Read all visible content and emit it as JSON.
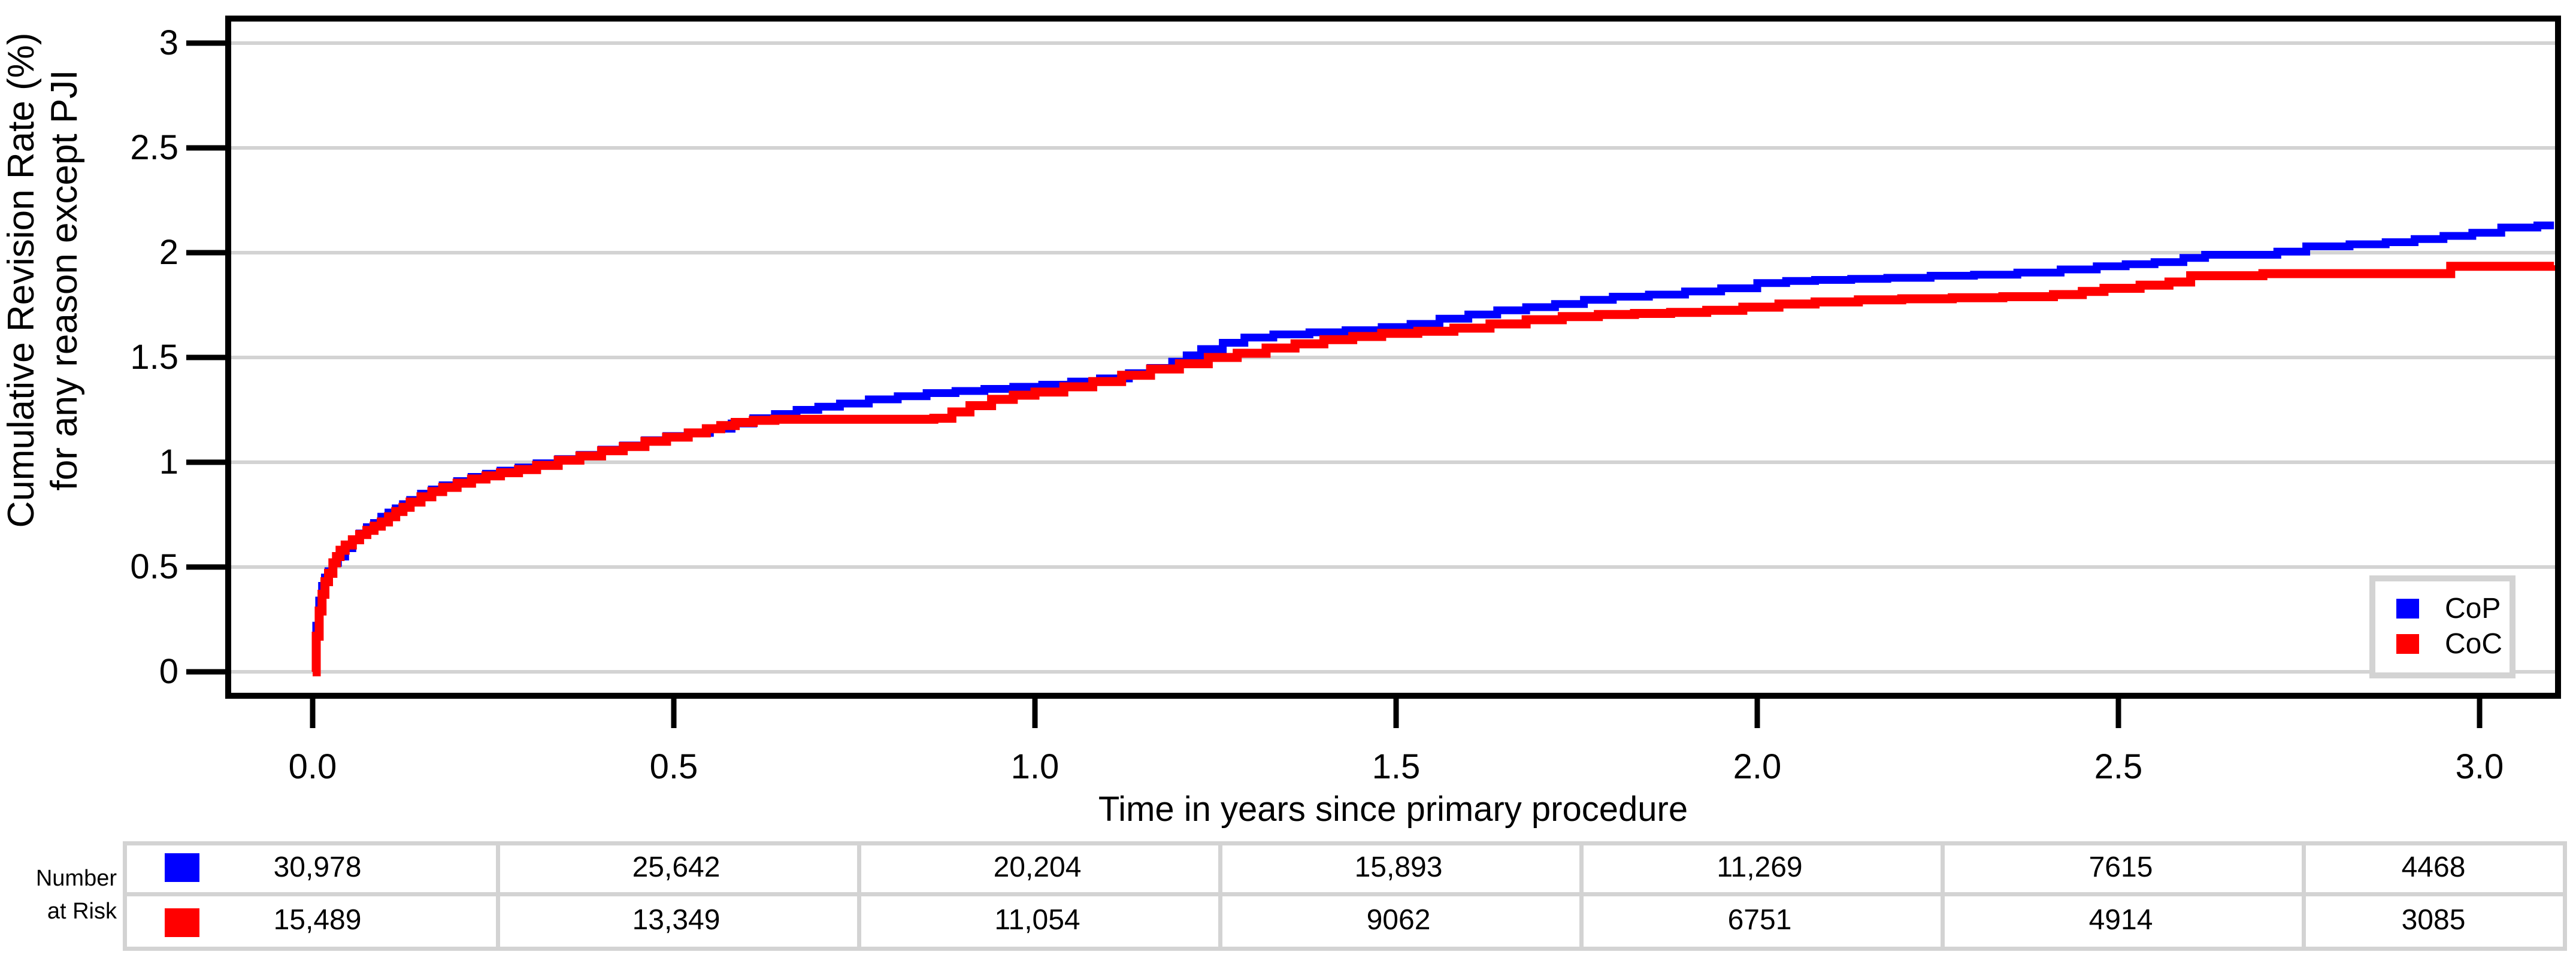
{
  "chart_data": {
    "type": "line",
    "subtype": "step-cumulative-incidence",
    "title": "",
    "xlabel": "Time in years since primary procedure",
    "ylabel_line1": "Cumulative Revision Rate (%)",
    "ylabel_line2": "for any reason except PJI",
    "xlim": [
      -0.16,
      3.1
    ],
    "ylim": [
      0,
      3.1
    ],
    "x_ticks": [
      "0.0",
      "0.5",
      "1.0",
      "1.5",
      "2.0",
      "2.5",
      "3.0"
    ],
    "y_ticks": [
      "3",
      "2.5",
      "2",
      "1.5",
      "1",
      "0.5",
      "0"
    ],
    "grid": true,
    "gridline_color": "#d3d3d3",
    "legend_position": "lower right",
    "series": [
      {
        "name": "CoP",
        "color": "#0000ff",
        "points": [
          [
            0,
            0
          ],
          [
            0.005,
            0.22
          ],
          [
            0.009,
            0.34
          ],
          [
            0.013,
            0.41
          ],
          [
            0.017,
            0.45
          ],
          [
            0.022,
            0.48
          ],
          [
            0.028,
            0.52
          ],
          [
            0.035,
            0.55
          ],
          [
            0.045,
            0.59
          ],
          [
            0.055,
            0.63
          ],
          [
            0.065,
            0.66
          ],
          [
            0.075,
            0.69
          ],
          [
            0.085,
            0.71
          ],
          [
            0.095,
            0.74
          ],
          [
            0.105,
            0.76
          ],
          [
            0.115,
            0.78
          ],
          [
            0.125,
            0.8
          ],
          [
            0.135,
            0.82
          ],
          [
            0.15,
            0.85
          ],
          [
            0.165,
            0.87
          ],
          [
            0.18,
            0.89
          ],
          [
            0.2,
            0.91
          ],
          [
            0.22,
            0.93
          ],
          [
            0.24,
            0.945
          ],
          [
            0.26,
            0.96
          ],
          [
            0.285,
            0.975
          ],
          [
            0.31,
            0.995
          ],
          [
            0.34,
            1.015
          ],
          [
            0.37,
            1.035
          ],
          [
            0.4,
            1.06
          ],
          [
            0.43,
            1.08
          ],
          [
            0.46,
            1.105
          ],
          [
            0.49,
            1.125
          ],
          [
            0.52,
            1.14
          ],
          [
            0.55,
            1.16
          ],
          [
            0.58,
            1.185
          ],
          [
            0.61,
            1.21
          ],
          [
            0.64,
            1.23
          ],
          [
            0.67,
            1.25
          ],
          [
            0.7,
            1.265
          ],
          [
            0.73,
            1.28
          ],
          [
            0.77,
            1.3
          ],
          [
            0.81,
            1.315
          ],
          [
            0.85,
            1.33
          ],
          [
            0.89,
            1.34
          ],
          [
            0.93,
            1.35
          ],
          [
            0.97,
            1.36
          ],
          [
            1.01,
            1.37
          ],
          [
            1.05,
            1.385
          ],
          [
            1.09,
            1.4
          ],
          [
            1.13,
            1.425
          ],
          [
            1.16,
            1.45
          ],
          [
            1.19,
            1.48
          ],
          [
            1.21,
            1.51
          ],
          [
            1.23,
            1.54
          ],
          [
            1.26,
            1.57
          ],
          [
            1.29,
            1.595
          ],
          [
            1.33,
            1.61
          ],
          [
            1.38,
            1.62
          ],
          [
            1.43,
            1.63
          ],
          [
            1.48,
            1.645
          ],
          [
            1.52,
            1.66
          ],
          [
            1.56,
            1.685
          ],
          [
            1.6,
            1.705
          ],
          [
            1.64,
            1.725
          ],
          [
            1.68,
            1.74
          ],
          [
            1.72,
            1.755
          ],
          [
            1.76,
            1.775
          ],
          [
            1.8,
            1.79
          ],
          [
            1.85,
            1.8
          ],
          [
            1.9,
            1.815
          ],
          [
            1.95,
            1.83
          ],
          [
            2.0,
            1.855
          ],
          [
            2.04,
            1.865
          ],
          [
            2.08,
            1.87
          ],
          [
            2.13,
            1.875
          ],
          [
            2.18,
            1.88
          ],
          [
            2.24,
            1.89
          ],
          [
            2.3,
            1.895
          ],
          [
            2.36,
            1.905
          ],
          [
            2.42,
            1.92
          ],
          [
            2.47,
            1.935
          ],
          [
            2.51,
            1.945
          ],
          [
            2.55,
            1.955
          ],
          [
            2.59,
            1.975
          ],
          [
            2.62,
            1.99
          ],
          [
            2.72,
            2.005
          ],
          [
            2.76,
            2.03
          ],
          [
            2.82,
            2.04
          ],
          [
            2.87,
            2.05
          ],
          [
            2.91,
            2.065
          ],
          [
            2.95,
            2.08
          ],
          [
            2.99,
            2.095
          ],
          [
            3.03,
            2.12
          ],
          [
            3.08,
            2.13
          ],
          [
            3.103,
            2.13
          ]
        ]
      },
      {
        "name": "CoC",
        "color": "#ff0000",
        "points": [
          [
            0,
            0
          ],
          [
            0.005,
            0.17
          ],
          [
            0.009,
            0.29
          ],
          [
            0.013,
            0.37
          ],
          [
            0.017,
            0.43
          ],
          [
            0.022,
            0.47
          ],
          [
            0.028,
            0.52
          ],
          [
            0.033,
            0.55
          ],
          [
            0.038,
            0.58
          ],
          [
            0.045,
            0.605
          ],
          [
            0.055,
            0.63
          ],
          [
            0.065,
            0.655
          ],
          [
            0.075,
            0.675
          ],
          [
            0.085,
            0.695
          ],
          [
            0.095,
            0.715
          ],
          [
            0.105,
            0.74
          ],
          [
            0.115,
            0.765
          ],
          [
            0.125,
            0.785
          ],
          [
            0.135,
            0.81
          ],
          [
            0.15,
            0.835
          ],
          [
            0.165,
            0.86
          ],
          [
            0.18,
            0.88
          ],
          [
            0.2,
            0.9
          ],
          [
            0.22,
            0.92
          ],
          [
            0.24,
            0.935
          ],
          [
            0.26,
            0.95
          ],
          [
            0.285,
            0.965
          ],
          [
            0.31,
            0.985
          ],
          [
            0.34,
            1.01
          ],
          [
            0.37,
            1.03
          ],
          [
            0.4,
            1.055
          ],
          [
            0.43,
            1.075
          ],
          [
            0.46,
            1.1
          ],
          [
            0.49,
            1.12
          ],
          [
            0.52,
            1.14
          ],
          [
            0.545,
            1.16
          ],
          [
            0.565,
            1.175
          ],
          [
            0.585,
            1.19
          ],
          [
            0.61,
            1.2
          ],
          [
            0.64,
            1.205
          ],
          [
            0.86,
            1.21
          ],
          [
            0.885,
            1.24
          ],
          [
            0.91,
            1.27
          ],
          [
            0.94,
            1.3
          ],
          [
            0.97,
            1.32
          ],
          [
            1.0,
            1.335
          ],
          [
            1.04,
            1.36
          ],
          [
            1.08,
            1.385
          ],
          [
            1.12,
            1.415
          ],
          [
            1.16,
            1.445
          ],
          [
            1.2,
            1.47
          ],
          [
            1.24,
            1.5
          ],
          [
            1.28,
            1.52
          ],
          [
            1.32,
            1.545
          ],
          [
            1.36,
            1.565
          ],
          [
            1.4,
            1.585
          ],
          [
            1.44,
            1.6
          ],
          [
            1.48,
            1.615
          ],
          [
            1.53,
            1.625
          ],
          [
            1.58,
            1.64
          ],
          [
            1.63,
            1.66
          ],
          [
            1.68,
            1.68
          ],
          [
            1.73,
            1.695
          ],
          [
            1.78,
            1.705
          ],
          [
            1.83,
            1.71
          ],
          [
            1.88,
            1.715
          ],
          [
            1.93,
            1.725
          ],
          [
            1.98,
            1.74
          ],
          [
            2.03,
            1.755
          ],
          [
            2.08,
            1.765
          ],
          [
            2.14,
            1.775
          ],
          [
            2.2,
            1.78
          ],
          [
            2.27,
            1.785
          ],
          [
            2.34,
            1.79
          ],
          [
            2.41,
            1.8
          ],
          [
            2.45,
            1.815
          ],
          [
            2.48,
            1.83
          ],
          [
            2.53,
            1.845
          ],
          [
            2.57,
            1.86
          ],
          [
            2.6,
            1.89
          ],
          [
            2.7,
            1.9
          ],
          [
            2.96,
            1.935
          ],
          [
            3.103,
            1.94
          ]
        ]
      }
    ]
  },
  "legend": {
    "items": [
      {
        "label": "CoP",
        "color": "#0000ff"
      },
      {
        "label": "CoC",
        "color": "#ff0000"
      }
    ]
  },
  "risk_table": {
    "label_line1": "Number",
    "label_line2": "at Risk",
    "rows": [
      {
        "series": "CoP",
        "color": "#0000ff",
        "values": [
          "30,978",
          "25,642",
          "20,204",
          "15,893",
          "11,269",
          "7615",
          "4468"
        ]
      },
      {
        "series": "CoC",
        "color": "#ff0000",
        "values": [
          "15,489",
          "13,349",
          "11,054",
          "9062",
          "6751",
          "4914",
          "3085"
        ]
      }
    ]
  },
  "colors": {
    "plot_border": "#000000",
    "gridline": "#d3d3d3",
    "table_border": "#d3d3d3",
    "legend_border": "#d3d3d3",
    "background": "#ffffff"
  }
}
